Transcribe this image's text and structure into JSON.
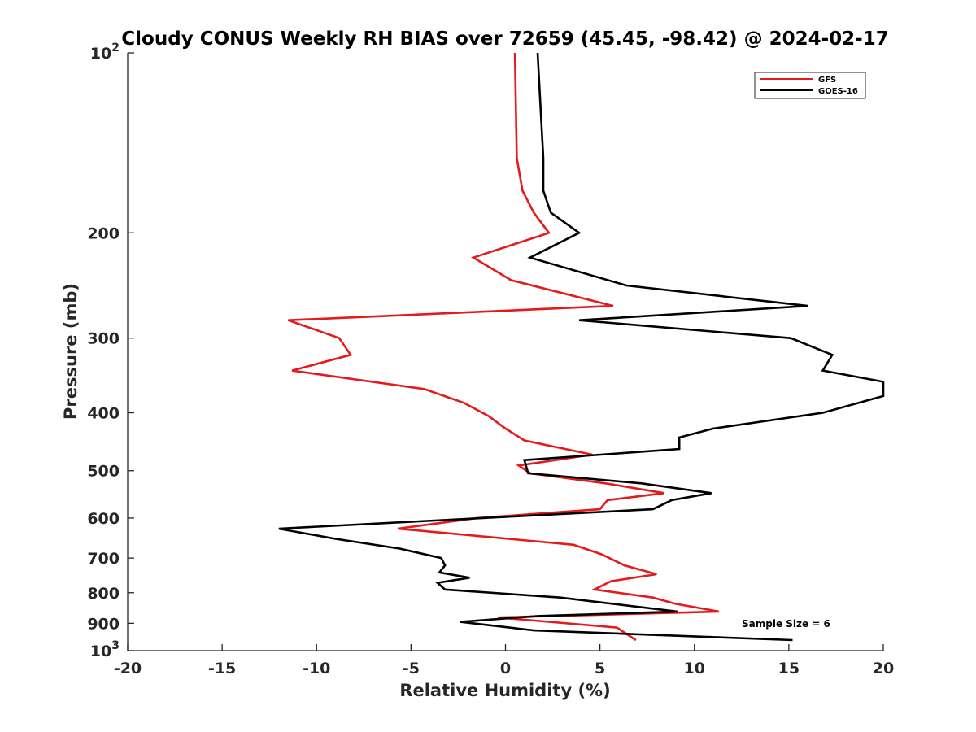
{
  "chart_data": {
    "type": "line",
    "title": "Cloudy CONUS Weekly RH BIAS over 72659 (45.45, -98.42) @ 2024-02-17",
    "xlabel": "Relative Humidity (%)",
    "ylabel": "Pressure (mb)",
    "xlim": [
      -20,
      20
    ],
    "ylim": [
      100,
      1000
    ],
    "y_scale": "log",
    "y_reversed": true,
    "grid": false,
    "legend_position": "top-right",
    "annotation": "Sample Size = 6",
    "x_ticks": [
      {
        "value": -20,
        "label": "-20"
      },
      {
        "value": -15,
        "label": "-15"
      },
      {
        "value": -10,
        "label": "-10"
      },
      {
        "value": -5,
        "label": "-5"
      },
      {
        "value": 0,
        "label": "0"
      },
      {
        "value": 5,
        "label": "5"
      },
      {
        "value": 10,
        "label": "10"
      },
      {
        "value": 15,
        "label": "15"
      },
      {
        "value": 20,
        "label": "20"
      }
    ],
    "y_ticks": [
      {
        "value": 100,
        "base": "10",
        "exp": "2"
      },
      {
        "value": 200,
        "label": "200"
      },
      {
        "value": 300,
        "label": "300"
      },
      {
        "value": 400,
        "label": "400"
      },
      {
        "value": 500,
        "label": "500"
      },
      {
        "value": 600,
        "label": "600"
      },
      {
        "value": 700,
        "label": "700"
      },
      {
        "value": 800,
        "label": "800"
      },
      {
        "value": 900,
        "label": "900"
      },
      {
        "value": 1000,
        "base": "10",
        "exp": "3"
      }
    ],
    "series": [
      {
        "name": "GFS",
        "color": "#e41a1c",
        "points": [
          [
            0.5,
            100
          ],
          [
            0.6,
            150
          ],
          [
            0.9,
            170
          ],
          [
            1.5,
            185
          ],
          [
            2.3,
            200
          ],
          [
            -1.7,
            220
          ],
          [
            0.3,
            240
          ],
          [
            5.7,
            265
          ],
          [
            -11.5,
            280
          ],
          [
            -8.8,
            300
          ],
          [
            -8.2,
            320
          ],
          [
            -11.3,
            340
          ],
          [
            -4.3,
            365
          ],
          [
            -2.2,
            385
          ],
          [
            -0.9,
            405
          ],
          [
            0.0,
            425
          ],
          [
            1.0,
            445
          ],
          [
            4.6,
            470
          ],
          [
            0.7,
            490
          ],
          [
            1.3,
            505
          ],
          [
            5.3,
            525
          ],
          [
            8.4,
            545
          ],
          [
            5.4,
            560
          ],
          [
            5.0,
            580
          ],
          [
            -1.5,
            600
          ],
          [
            -5.7,
            625
          ],
          [
            3.6,
            665
          ],
          [
            5.1,
            690
          ],
          [
            6.3,
            720
          ],
          [
            8.0,
            745
          ],
          [
            5.6,
            765
          ],
          [
            4.7,
            790
          ],
          [
            7.8,
            815
          ],
          [
            9.0,
            835
          ],
          [
            11.3,
            860
          ],
          [
            -0.4,
            880
          ],
          [
            5.9,
            915
          ],
          [
            6.9,
            960
          ]
        ]
      },
      {
        "name": "GOES-16",
        "color": "#000000",
        "points": [
          [
            1.7,
            100
          ],
          [
            2.0,
            150
          ],
          [
            2.0,
            170
          ],
          [
            2.4,
            185
          ],
          [
            3.9,
            200
          ],
          [
            1.3,
            220
          ],
          [
            6.4,
            245
          ],
          [
            16.0,
            265
          ],
          [
            3.9,
            280
          ],
          [
            15.1,
            300
          ],
          [
            17.3,
            320
          ],
          [
            16.8,
            340
          ],
          [
            20.0,
            355
          ],
          [
            20.0,
            375
          ],
          [
            16.8,
            400
          ],
          [
            11.0,
            425
          ],
          [
            9.2,
            440
          ],
          [
            9.2,
            460
          ],
          [
            1.0,
            480
          ],
          [
            1.2,
            505
          ],
          [
            7.2,
            525
          ],
          [
            10.9,
            545
          ],
          [
            8.8,
            560
          ],
          [
            7.8,
            580
          ],
          [
            -1.2,
            600
          ],
          [
            -12.0,
            625
          ],
          [
            -9.0,
            650
          ],
          [
            -5.6,
            675
          ],
          [
            -3.4,
            700
          ],
          [
            -3.2,
            720
          ],
          [
            -3.5,
            740
          ],
          [
            -1.9,
            755
          ],
          [
            -3.6,
            770
          ],
          [
            -3.2,
            790
          ],
          [
            2.9,
            815
          ],
          [
            9.1,
            860
          ],
          [
            1.7,
            875
          ],
          [
            -2.4,
            895
          ],
          [
            1.5,
            925
          ],
          [
            15.2,
            960
          ]
        ]
      }
    ]
  }
}
